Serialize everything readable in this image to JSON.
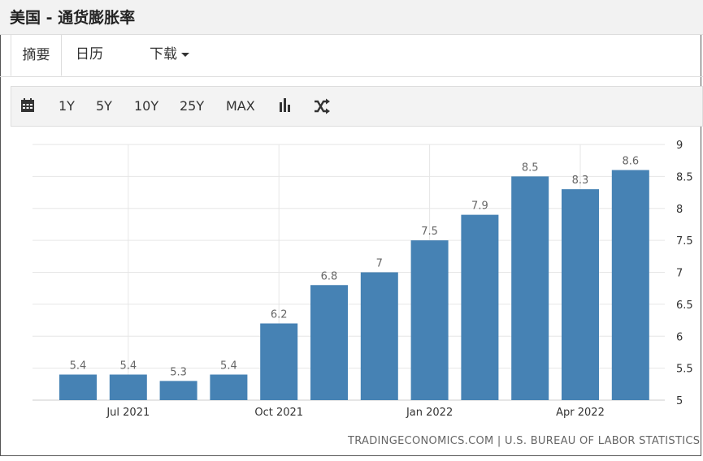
{
  "header": {
    "title": "美国 - 通货膨胀率"
  },
  "tabs": {
    "summary": "摘要",
    "calendar": "日历",
    "download": "下载"
  },
  "toolbar": {
    "calendar_icon": "calendar-icon",
    "ranges": [
      "1Y",
      "5Y",
      "10Y",
      "25Y",
      "MAX"
    ],
    "bar_chart_icon": "bar-chart-icon",
    "shuffle_icon": "shuffle-icon"
  },
  "chart_data": {
    "type": "bar",
    "categories": [
      "2021-06",
      "2021-07",
      "2021-08",
      "2021-09",
      "2021-10",
      "2021-11",
      "2021-12",
      "2022-01",
      "2022-02",
      "2022-03",
      "2022-04",
      "2022-05"
    ],
    "values": [
      5.4,
      5.4,
      5.3,
      5.4,
      6.2,
      6.8,
      7,
      7.5,
      7.9,
      8.5,
      8.3,
      8.6
    ],
    "data_labels": [
      "5.4",
      "5.4",
      "5.3",
      "5.4",
      "6.2",
      "6.8",
      "7",
      "7.5",
      "7.9",
      "8.5",
      "8.3",
      "8.6"
    ],
    "x_tick_labels": [
      "Jul 2021",
      "Oct 2021",
      "Jan 2022",
      "Apr 2022"
    ],
    "x_tick_months": [
      "2021-07",
      "2021-10",
      "2022-01",
      "2022-04"
    ],
    "y_tick_labels": [
      "5",
      "5.5",
      "6",
      "6.5",
      "7",
      "7.5",
      "8",
      "8.5",
      "9"
    ],
    "ylim": [
      5,
      9
    ],
    "y_axis_position": "right",
    "grid": true,
    "bar_color": "#4682b4"
  },
  "footer": {
    "source": "TRADINGECONOMICS.COM | U.S. BUREAU OF LABOR STATISTICS"
  }
}
